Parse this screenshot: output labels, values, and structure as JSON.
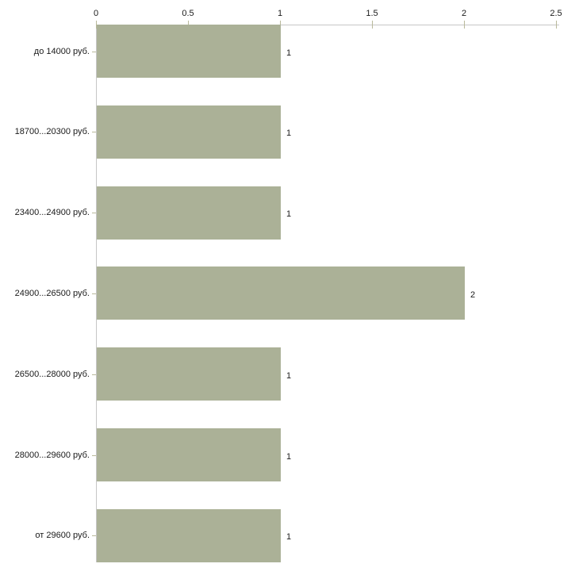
{
  "chart_data": {
    "type": "bar",
    "orientation": "horizontal",
    "title": "",
    "xlabel": "",
    "ylabel": "",
    "categories": [
      "до 14000 руб.",
      "18700...20300 руб.",
      "23400...24900 руб.",
      "24900...26500 руб.",
      "26500...28000 руб.",
      "28000...29600 руб.",
      "от 29600 руб."
    ],
    "values": [
      1,
      1,
      1,
      2,
      1,
      1,
      1
    ],
    "value_labels": [
      "1",
      "1",
      "1",
      "2",
      "1",
      "1",
      "1"
    ],
    "x_ticks": [
      0,
      0.5,
      1,
      1.5,
      2,
      2.5
    ],
    "x_tick_labels": [
      "0",
      "0.5",
      "1",
      "1.5",
      "2",
      "2.5"
    ],
    "xlim": [
      0,
      2.5
    ],
    "grid": false,
    "legend": null,
    "axis_position": "top",
    "colors": {
      "bar_fill": "#abb197",
      "axis_line": "#c6c6c6",
      "tick_mark": "#b9b99b",
      "text": "#1a1a1a",
      "background": "#ffffff"
    }
  }
}
